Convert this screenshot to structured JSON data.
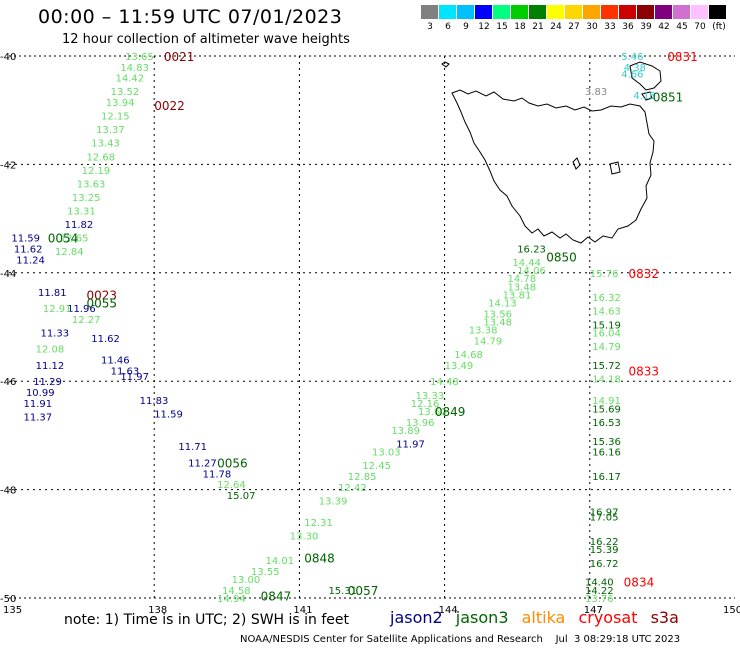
{
  "header": {
    "title": "00:00 – 11:59 UTC 07/01/2023",
    "subtitle": "12 hour collection of altimeter wave heights"
  },
  "color_scale": {
    "unit_label": "(ft)",
    "bins": [
      {
        "label": "3",
        "color": "#808080"
      },
      {
        "label": "6",
        "color": "#00e5ff"
      },
      {
        "label": "9",
        "color": "#00bfff"
      },
      {
        "label": "12",
        "color": "#0000ff"
      },
      {
        "label": "15",
        "color": "#00ff7f"
      },
      {
        "label": "18",
        "color": "#00cc00"
      },
      {
        "label": "21",
        "color": "#008000"
      },
      {
        "label": "24",
        "color": "#ffff00"
      },
      {
        "label": "27",
        "color": "#ffd700"
      },
      {
        "label": "30",
        "color": "#ffa500"
      },
      {
        "label": "33",
        "color": "#ff3300"
      },
      {
        "label": "36",
        "color": "#cc0000"
      },
      {
        "label": "39",
        "color": "#8b0000"
      },
      {
        "label": "42",
        "color": "#800080"
      },
      {
        "label": "45",
        "color": "#d070d0"
      },
      {
        "label": "70",
        "color": "#ffc0ff"
      },
      {
        "label": "",
        "color": "#000000"
      }
    ]
  },
  "axes": {
    "lon_ticks": [
      "135",
      "138",
      "141",
      "144",
      "147",
      "150"
    ],
    "lat_ticks": [
      "-40",
      "-42",
      "-44",
      "-46",
      "-48",
      "-50"
    ]
  },
  "satellite_colors": {
    "jason2": "#00008b",
    "jason3": "#006400",
    "altika": "#ff8c00",
    "cryosat": "#ff0000",
    "s3a": "#8b0000",
    "track_light": "#66dd66",
    "cyan": "#33cccc",
    "gray": "#888888"
  },
  "pass_labels": [
    {
      "text": "0021",
      "color": "s3a",
      "lon": 138.2,
      "lat": -40.0
    },
    {
      "text": "0022",
      "color": "s3a",
      "lon": 138.0,
      "lat": -40.9
    },
    {
      "text": "0054",
      "color": "jason3",
      "lon": 135.8,
      "lat": -43.35
    },
    {
      "text": "0023",
      "color": "s3a",
      "lon": 136.6,
      "lat": -44.4
    },
    {
      "text": "0055",
      "color": "jason3",
      "lon": 136.6,
      "lat": -44.55
    },
    {
      "text": "0056",
      "color": "jason3",
      "lon": 139.3,
      "lat": -47.5
    },
    {
      "text": "0847",
      "color": "jason3",
      "lon": 140.2,
      "lat": -49.95
    },
    {
      "text": "0848",
      "color": "jason3",
      "lon": 141.1,
      "lat": -49.25
    },
    {
      "text": "0849",
      "color": "jason3",
      "lon": 143.8,
      "lat": -46.55
    },
    {
      "text": "0850",
      "color": "jason3",
      "lon": 146.1,
      "lat": -43.7
    },
    {
      "text": "0851",
      "color": "jason3",
      "lon": 148.3,
      "lat": -40.75
    },
    {
      "text": "0831",
      "color": "cryosat",
      "lon": 148.6,
      "lat": -40.0
    },
    {
      "text": "0832",
      "color": "cryosat",
      "lon": 147.8,
      "lat": -44.0
    },
    {
      "text": "0833",
      "color": "cryosat",
      "lon": 147.8,
      "lat": -45.8
    },
    {
      "text": "0834",
      "color": "cryosat",
      "lon": 147.7,
      "lat": -49.7
    },
    {
      "text": "0057",
      "color": "jason3",
      "lon": 142.0,
      "lat": -49.85
    }
  ],
  "wave_values": [
    {
      "text": "13.65",
      "lon": 137.4,
      "lat": -40.0,
      "color": "track_light"
    },
    {
      "text": "14.83",
      "lon": 137.3,
      "lat": -40.2,
      "color": "track_light"
    },
    {
      "text": "14.42",
      "lon": 137.2,
      "lat": -40.4,
      "color": "track_light"
    },
    {
      "text": "13.52",
      "lon": 137.1,
      "lat": -40.65,
      "color": "track_light"
    },
    {
      "text": "13.94",
      "lon": 137.0,
      "lat": -40.85,
      "color": "track_light"
    },
    {
      "text": "12.15",
      "lon": 136.9,
      "lat": -41.1,
      "color": "track_light"
    },
    {
      "text": "13.37",
      "lon": 136.8,
      "lat": -41.35,
      "color": "track_light"
    },
    {
      "text": "13.43",
      "lon": 136.7,
      "lat": -41.6,
      "color": "track_light"
    },
    {
      "text": "12.68",
      "lon": 136.6,
      "lat": -41.85,
      "color": "track_light"
    },
    {
      "text": "12.19",
      "lon": 136.5,
      "lat": -42.1,
      "color": "track_light"
    },
    {
      "text": "13.63",
      "lon": 136.4,
      "lat": -42.35,
      "color": "track_light"
    },
    {
      "text": "13.25",
      "lon": 136.3,
      "lat": -42.6,
      "color": "track_light"
    },
    {
      "text": "13.31",
      "lon": 136.2,
      "lat": -42.85,
      "color": "track_light"
    },
    {
      "text": "11.82",
      "lon": 136.15,
      "lat": -43.1,
      "color": "jason2"
    },
    {
      "text": "12.65",
      "lon": 136.05,
      "lat": -43.35,
      "color": "track_light"
    },
    {
      "text": "12.84",
      "lon": 135.95,
      "lat": -43.6,
      "color": "track_light"
    },
    {
      "text": "11.59",
      "lon": 135.05,
      "lat": -43.35,
      "color": "jason2"
    },
    {
      "text": "11.62",
      "lon": 135.1,
      "lat": -43.55,
      "color": "jason2"
    },
    {
      "text": "11.24",
      "lon": 135.15,
      "lat": -43.75,
      "color": "jason2"
    },
    {
      "text": "11.81",
      "lon": 135.6,
      "lat": -44.35,
      "color": "jason2"
    },
    {
      "text": "11.96",
      "lon": 136.2,
      "lat": -44.65,
      "color": "jason2"
    },
    {
      "text": "12.91",
      "lon": 135.7,
      "lat": -44.65,
      "color": "track_light"
    },
    {
      "text": "12.27",
      "lon": 136.3,
      "lat": -44.85,
      "color": "track_light"
    },
    {
      "text": "11.33",
      "lon": 135.65,
      "lat": -45.1,
      "color": "jason2"
    },
    {
      "text": "11.62",
      "lon": 136.7,
      "lat": -45.2,
      "color": "jason2"
    },
    {
      "text": "12.08",
      "lon": 135.55,
      "lat": -45.4,
      "color": "track_light"
    },
    {
      "text": "11.46",
      "lon": 136.9,
      "lat": -45.6,
      "color": "jason2"
    },
    {
      "text": "11.12",
      "lon": 135.55,
      "lat": -45.7,
      "color": "jason2"
    },
    {
      "text": "11.63",
      "lon": 137.1,
      "lat": -45.8,
      "color": "jason2"
    },
    {
      "text": "11.29",
      "lon": 135.5,
      "lat": -46.0,
      "color": "jason2"
    },
    {
      "text": "11.97",
      "lon": 137.3,
      "lat": -45.9,
      "color": "jason2"
    },
    {
      "text": "10.99",
      "lon": 135.35,
      "lat": -46.2,
      "color": "jason2"
    },
    {
      "text": "11.91",
      "lon": 135.3,
      "lat": -46.4,
      "color": "jason2"
    },
    {
      "text": "11.83",
      "lon": 137.7,
      "lat": -46.35,
      "color": "jason2"
    },
    {
      "text": "11.37",
      "lon": 135.3,
      "lat": -46.65,
      "color": "jason2"
    },
    {
      "text": "11.59",
      "lon": 138.0,
      "lat": -46.6,
      "color": "jason2"
    },
    {
      "text": "11.71",
      "lon": 138.5,
      "lat": -47.2,
      "color": "jason2"
    },
    {
      "text": "11.27",
      "lon": 138.7,
      "lat": -47.5,
      "color": "jason2"
    },
    {
      "text": "11.78",
      "lon": 139.0,
      "lat": -47.7,
      "color": "jason2"
    },
    {
      "text": "12.64",
      "lon": 139.3,
      "lat": -47.9,
      "color": "track_light"
    },
    {
      "text": "15.07",
      "lon": 139.5,
      "lat": -48.1,
      "color": "jason3"
    },
    {
      "text": "13.30",
      "lon": 140.8,
      "lat": -48.85,
      "color": "track_light"
    },
    {
      "text": "12.31",
      "lon": 141.1,
      "lat": -48.6,
      "color": "track_light"
    },
    {
      "text": "13.39",
      "lon": 141.4,
      "lat": -48.2,
      "color": "track_light"
    },
    {
      "text": "12.42",
      "lon": 141.8,
      "lat": -47.95,
      "color": "track_light"
    },
    {
      "text": "12.85",
      "lon": 142.0,
      "lat": -47.75,
      "color": "track_light"
    },
    {
      "text": "12.45",
      "lon": 142.3,
      "lat": -47.55,
      "color": "track_light"
    },
    {
      "text": "13.03",
      "lon": 142.5,
      "lat": -47.3,
      "color": "track_light"
    },
    {
      "text": "11.97",
      "lon": 143.0,
      "lat": -47.15,
      "color": "jason2"
    },
    {
      "text": "13.89",
      "lon": 142.9,
      "lat": -46.9,
      "color": "track_light"
    },
    {
      "text": "13.96",
      "lon": 143.2,
      "lat": -46.75,
      "color": "track_light"
    },
    {
      "text": "13.60",
      "lon": 143.45,
      "lat": -46.55,
      "color": "track_light"
    },
    {
      "text": "12.16",
      "lon": 143.3,
      "lat": -46.4,
      "color": "track_light"
    },
    {
      "text": "13.33",
      "lon": 143.4,
      "lat": -46.25,
      "color": "track_light"
    },
    {
      "text": "14.48",
      "lon": 143.7,
      "lat": -46.0,
      "color": "track_light"
    },
    {
      "text": "13.49",
      "lon": 144.0,
      "lat": -45.7,
      "color": "track_light"
    },
    {
      "text": "14.68",
      "lon": 144.2,
      "lat": -45.5,
      "color": "track_light"
    },
    {
      "text": "14.79",
      "lon": 144.6,
      "lat": -45.25,
      "color": "track_light"
    },
    {
      "text": "13.38",
      "lon": 144.5,
      "lat": -45.05,
      "color": "track_light"
    },
    {
      "text": "13.48",
      "lon": 144.8,
      "lat": -44.9,
      "color": "track_light"
    },
    {
      "text": "13.56",
      "lon": 144.8,
      "lat": -44.75,
      "color": "track_light"
    },
    {
      "text": "14.13",
      "lon": 144.9,
      "lat": -44.55,
      "color": "track_light"
    },
    {
      "text": "13.81",
      "lon": 145.2,
      "lat": -44.4,
      "color": "track_light"
    },
    {
      "text": "13.48",
      "lon": 145.3,
      "lat": -44.25,
      "color": "track_light"
    },
    {
      "text": "14.78",
      "lon": 145.3,
      "lat": -44.1,
      "color": "track_light"
    },
    {
      "text": "14.06",
      "lon": 145.5,
      "lat": -43.95,
      "color": "track_light"
    },
    {
      "text": "14.44",
      "lon": 145.4,
      "lat": -43.8,
      "color": "track_light"
    },
    {
      "text": "16.23",
      "lon": 145.5,
      "lat": -43.55,
      "color": "jason3"
    },
    {
      "text": "15.76",
      "lon": 147.0,
      "lat": -44.0,
      "color": "track_light"
    },
    {
      "text": "16.32",
      "lon": 147.05,
      "lat": -44.45,
      "color": "track_light"
    },
    {
      "text": "14.63",
      "lon": 147.05,
      "lat": -44.7,
      "color": "track_light"
    },
    {
      "text": "15.19",
      "lon": 147.05,
      "lat": -44.95,
      "color": "jason3"
    },
    {
      "text": "16.04",
      "lon": 147.05,
      "lat": -45.1,
      "color": "track_light"
    },
    {
      "text": "14.79",
      "lon": 147.05,
      "lat": -45.35,
      "color": "track_light"
    },
    {
      "text": "15.72",
      "lon": 147.05,
      "lat": -45.7,
      "color": "jason3"
    },
    {
      "text": "14.18",
      "lon": 147.05,
      "lat": -45.95,
      "color": "track_light"
    },
    {
      "text": "14.91",
      "lon": 147.05,
      "lat": -46.35,
      "color": "track_light"
    },
    {
      "text": "15.69",
      "lon": 147.05,
      "lat": -46.5,
      "color": "jason3"
    },
    {
      "text": "16.53",
      "lon": 147.05,
      "lat": -46.75,
      "color": "jason3"
    },
    {
      "text": "15.36",
      "lon": 147.05,
      "lat": -47.1,
      "color": "jason3"
    },
    {
      "text": "16.16",
      "lon": 147.05,
      "lat": -47.3,
      "color": "jason3"
    },
    {
      "text": "16.17",
      "lon": 147.05,
      "lat": -47.75,
      "color": "jason3"
    },
    {
      "text": "16.97",
      "lon": 147.0,
      "lat": -48.4,
      "color": "jason3"
    },
    {
      "text": "17.05",
      "lon": 147.0,
      "lat": -48.5,
      "color": "jason3"
    },
    {
      "text": "16.22",
      "lon": 147.0,
      "lat": -48.95,
      "color": "jason3"
    },
    {
      "text": "15.39",
      "lon": 147.0,
      "lat": -49.1,
      "color": "jason3"
    },
    {
      "text": "16.72",
      "lon": 147.0,
      "lat": -49.35,
      "color": "jason3"
    },
    {
      "text": "14.40",
      "lon": 146.9,
      "lat": -49.7,
      "color": "jason3"
    },
    {
      "text": "14.22",
      "lon": 146.9,
      "lat": -49.85,
      "color": "jason3"
    },
    {
      "text": "13.76",
      "lon": 146.9,
      "lat": -50.0,
      "color": "track_light"
    },
    {
      "text": "14.01",
      "lon": 140.3,
      "lat": -49.3,
      "color": "track_light"
    },
    {
      "text": "13.55",
      "lon": 140.0,
      "lat": -49.5,
      "color": "track_light"
    },
    {
      "text": "13.00",
      "lon": 139.6,
      "lat": -49.65,
      "color": "track_light"
    },
    {
      "text": "14.58",
      "lon": 139.4,
      "lat": -49.85,
      "color": "track_light"
    },
    {
      "text": "14.94",
      "lon": 139.3,
      "lat": -50.0,
      "color": "track_light"
    },
    {
      "text": "15.31",
      "lon": 141.6,
      "lat": -49.85,
      "color": "jason3"
    },
    {
      "text": "5.46",
      "lon": 147.65,
      "lat": -40.0,
      "color": "cyan"
    },
    {
      "text": "4.38",
      "lon": 147.7,
      "lat": -40.2,
      "color": "cyan"
    },
    {
      "text": "4.66",
      "lon": 147.65,
      "lat": -40.32,
      "color": "cyan"
    },
    {
      "text": "3.83",
      "lon": 146.9,
      "lat": -40.65,
      "color": "gray"
    },
    {
      "text": "4.18",
      "lon": 147.9,
      "lat": -40.72,
      "color": "cyan"
    }
  ],
  "footer": {
    "note": "note:  1) Time is in UTC;  2) SWH is in feet",
    "legend": [
      "jason2",
      "jason3",
      "altika",
      "cryosat",
      "s3a"
    ],
    "credit": "NOAA/NESDIS Center for Satellite Applications and Research    Jul  3 08:29:18 UTC 2023"
  }
}
